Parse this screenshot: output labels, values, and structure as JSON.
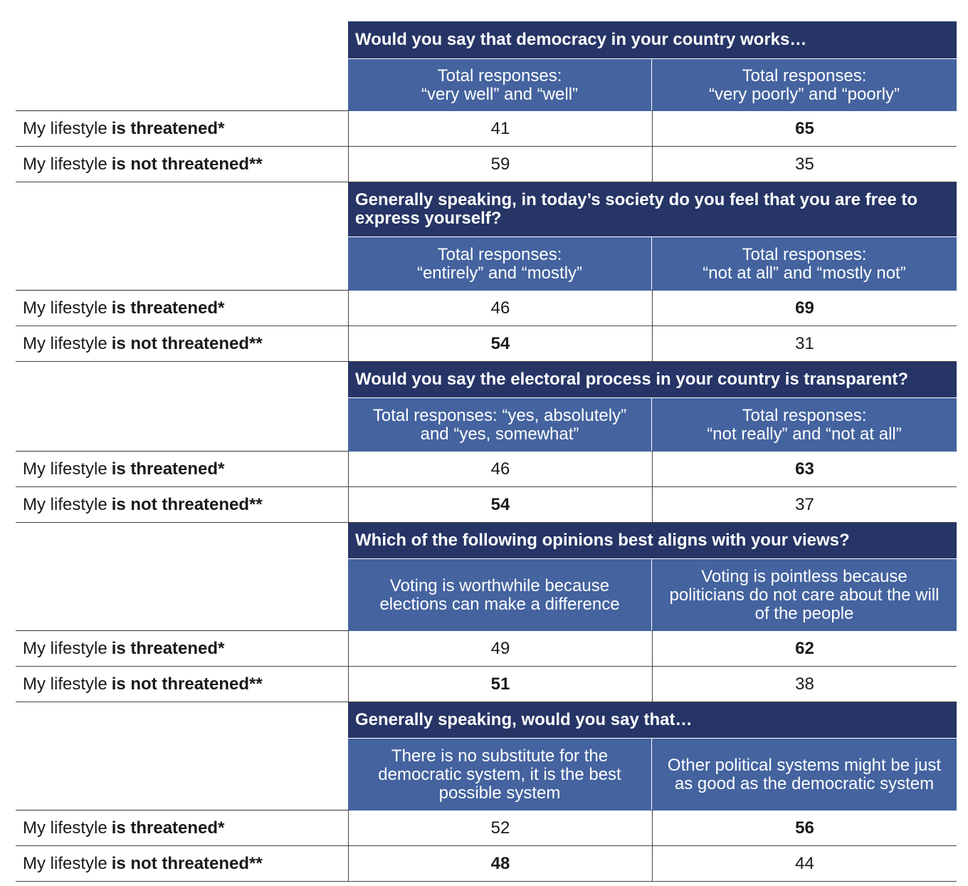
{
  "row_labels": {
    "threatened_prefix": "My lifestyle",
    "threatened_bold": "is threatened*",
    "not_threatened_prefix": "My lifestyle",
    "not_threatened_bold": "is not threatened**"
  },
  "sections": [
    {
      "question": "Would you say that democracy in your country works…",
      "col1": "Total responses:\n“very well” and “well”",
      "col2": "Total responses:\n“very poorly” and “poorly”",
      "threatened": [
        "41",
        "65"
      ],
      "not_threatened": [
        "59",
        "35"
      ],
      "bold": {
        "threatened": [
          false,
          true
        ],
        "not_threatened": [
          false,
          false
        ]
      }
    },
    {
      "question": "Generally speaking, in today’s society do you feel that you are free to express yourself?",
      "col1": "Total responses:\n“entirely” and “mostly”",
      "col2": "Total responses:\n“not at all” and “mostly not”",
      "threatened": [
        "46",
        "69"
      ],
      "not_threatened": [
        "54",
        "31"
      ],
      "bold": {
        "threatened": [
          false,
          true
        ],
        "not_threatened": [
          true,
          false
        ]
      }
    },
    {
      "question": "Would you say the electoral process in your country is transparent?",
      "col1": "Total responses: “yes, absolutely”\nand “yes, somewhat”",
      "col2": "Total responses:\n“not really” and “not at all”",
      "threatened": [
        "46",
        "63"
      ],
      "not_threatened": [
        "54",
        "37"
      ],
      "bold": {
        "threatened": [
          false,
          true
        ],
        "not_threatened": [
          true,
          false
        ]
      }
    },
    {
      "question": "Which of the following opinions best aligns with your views?",
      "col1": "Voting is worthwhile because elections can make a difference",
      "col2": "Voting is pointless because politicians do not care about the will of the people",
      "threatened": [
        "49",
        "62"
      ],
      "not_threatened": [
        "51",
        "38"
      ],
      "bold": {
        "threatened": [
          false,
          true
        ],
        "not_threatened": [
          true,
          false
        ]
      }
    },
    {
      "question": "Generally speaking, would you say that…",
      "col1": "There is no substitute for the democratic system, it is the best possible system",
      "col2": "Other political systems might be just as good as the democratic system",
      "threatened": [
        "52",
        "56"
      ],
      "not_threatened": [
        "48",
        "44"
      ],
      "bold": {
        "threatened": [
          false,
          true
        ],
        "not_threatened": [
          true,
          false
        ]
      }
    }
  ],
  "colors": {
    "question_bg": "#263566",
    "header_bg": "#44639f",
    "header_text": "#ffffff"
  }
}
